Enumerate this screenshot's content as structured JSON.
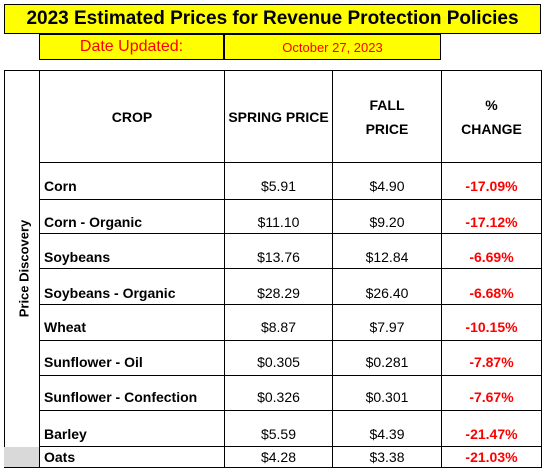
{
  "title": "2023 Estimated Prices for Revenue Protection Policies",
  "date_label": "Date Updated:",
  "date_value": "October 27, 2023",
  "side_label": "Price Discovery",
  "headers": {
    "crop": "CROP",
    "spring": "SPRING PRICE",
    "fall_line1": "FALL",
    "fall_line2": "PRICE",
    "change_line1": "%",
    "change_line2": "CHANGE"
  },
  "rows": [
    {
      "crop": "Corn",
      "spring": "$5.91",
      "fall": "$4.90",
      "change": "-17.09%"
    },
    {
      "crop": "Corn - Organic",
      "spring": "$11.10",
      "fall": "$9.20",
      "change": "-17.12%"
    },
    {
      "crop": "Soybeans",
      "spring": "$13.76",
      "fall": "$12.84",
      "change": "-6.69%"
    },
    {
      "crop": "Soybeans - Organic",
      "spring": "$28.29",
      "fall": "$26.40",
      "change": "-6.68%"
    },
    {
      "crop": "Wheat",
      "spring": "$8.87",
      "fall": "$7.97",
      "change": "-10.15%"
    },
    {
      "crop": "Sunflower - Oil",
      "spring": "$0.305",
      "fall": "$0.281",
      "change": "-7.87%"
    },
    {
      "crop": "Sunflower - Confection",
      "spring": "$0.326",
      "fall": "$0.301",
      "change": "-7.67%"
    },
    {
      "crop": "Barley",
      "spring": "$5.59",
      "fall": "$4.39",
      "change": "-21.47%"
    },
    {
      "crop": "Oats",
      "spring": "$4.28",
      "fall": "$3.38",
      "change": "-21.03%"
    }
  ],
  "colors": {
    "banner": "#ffff00",
    "date_text": "#ff0000",
    "negative_change": "#ff0000",
    "footer_gray": "#d9d9d9"
  }
}
